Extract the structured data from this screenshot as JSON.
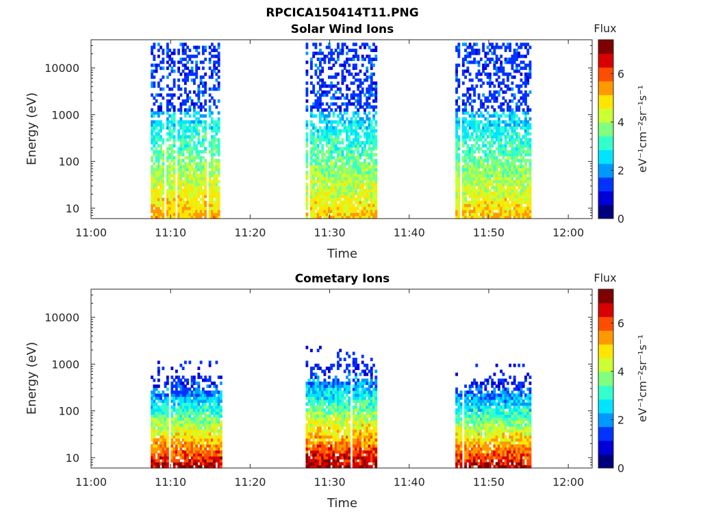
{
  "figure": {
    "title": "RPCICA150414T11.PNG"
  },
  "palette": [
    "#00007f",
    "#0000d9",
    "#0033ff",
    "#0099ff",
    "#00e5ff",
    "#33ffcc",
    "#80ff80",
    "#ccff33",
    "#ffe600",
    "#ff9900",
    "#ff4d00",
    "#d90000",
    "#800000"
  ],
  "chart_data": [
    {
      "type": "heatmap",
      "title": "Solar Wind Ions",
      "xlabel": "Time",
      "ylabel": "Energy (eV)",
      "yscale": "log",
      "xlim": [
        "11:00",
        "12:03"
      ],
      "ylim": [
        6,
        40000
      ],
      "xticks": [
        "11:00",
        "11:10",
        "11:20",
        "11:30",
        "11:40",
        "11:50",
        "12:00"
      ],
      "yticks": [
        "10",
        "100",
        "1000",
        "10000"
      ],
      "colorbar": {
        "title": "Flux",
        "label": "eV⁻¹cm⁻²sr⁻¹s⁻¹",
        "ticks": [
          "0",
          "2",
          "4",
          "6"
        ],
        "range": [
          0,
          7.4
        ]
      },
      "bursts": [
        {
          "start": "11:07.5",
          "end": "11:16.3",
          "e_max": 35000,
          "max_flux": 5.2
        },
        {
          "start": "11:26.7",
          "end": "11:35.7",
          "e_max": 35000,
          "max_flux": 5.0
        },
        {
          "start": "11:45.8",
          "end": "11:55.2",
          "e_max": 35000,
          "max_flux": 5.0
        }
      ]
    },
    {
      "type": "heatmap",
      "title": "Cometary Ions",
      "xlabel": "Time",
      "ylabel": "Energy (eV)",
      "yscale": "log",
      "xlim": [
        "11:00",
        "12:03"
      ],
      "ylim": [
        6,
        40000
      ],
      "xticks": [
        "11:00",
        "11:10",
        "11:20",
        "11:30",
        "11:40",
        "11:50",
        "12:00"
      ],
      "yticks": [
        "10",
        "100",
        "1000",
        "10000"
      ],
      "colorbar": {
        "title": "Flux",
        "label": "eV⁻¹cm⁻²sr⁻¹s⁻¹",
        "ticks": [
          "0",
          "2",
          "4",
          "6"
        ],
        "range": [
          0,
          7.4
        ]
      },
      "bursts": [
        {
          "start": "11:07.5",
          "end": "11:16.3",
          "e_max": 1200,
          "max_flux": 6.8
        },
        {
          "start": "11:26.7",
          "end": "11:35.7",
          "e_max": 2500,
          "max_flux": 7.0
        },
        {
          "start": "11:45.8",
          "end": "11:55.2",
          "e_max": 1000,
          "max_flux": 6.8
        }
      ]
    }
  ]
}
